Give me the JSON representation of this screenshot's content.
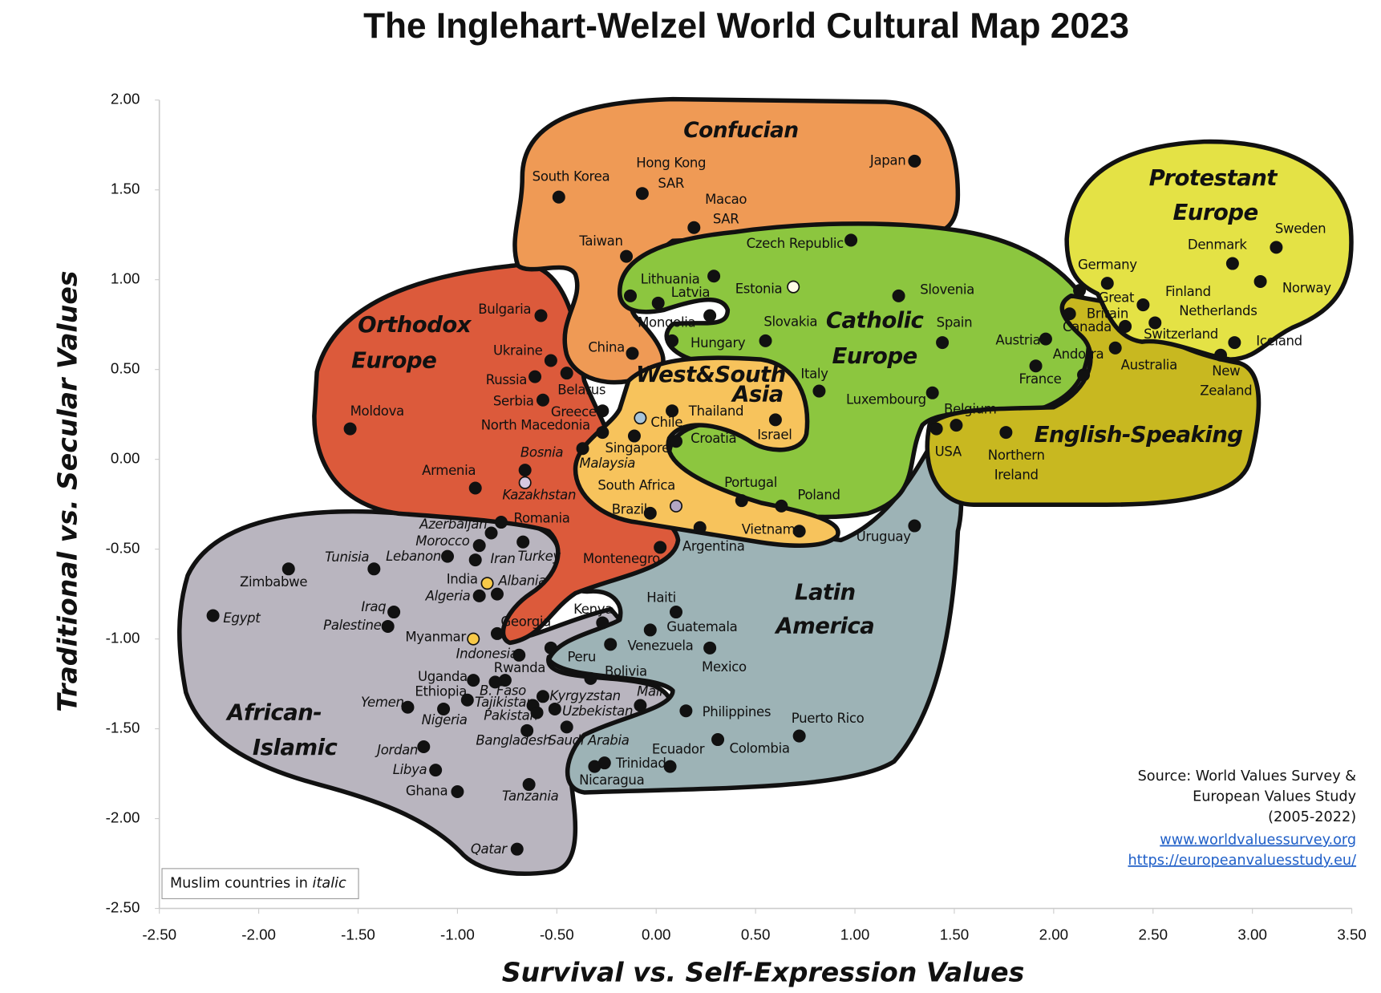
{
  "chart_data": {
    "type": "scatter",
    "title": "The Inglehart-Welzel World Cultural Map 2023",
    "x_label": "Survival vs. Self-Expression Values",
    "y_label": "Traditional vs. Secular Values",
    "xlim": [
      -2.5,
      3.5
    ],
    "ylim": [
      -2.5,
      2.0
    ],
    "xticks": [
      {
        "value": -2.5,
        "label": "-2.50"
      },
      {
        "value": -2.0,
        "label": "-2.00"
      },
      {
        "value": -1.5,
        "label": "-1.50"
      },
      {
        "value": -1.0,
        "label": "-1.00"
      },
      {
        "value": -0.5,
        "label": "-0.50"
      },
      {
        "value": 0,
        "label": "0.00"
      },
      {
        "value": 0.5,
        "label": "0.50"
      },
      {
        "value": 1.0,
        "label": "1.00"
      },
      {
        "value": 1.5,
        "label": "1.50"
      },
      {
        "value": 2.0,
        "label": "2.00"
      },
      {
        "value": 2.5,
        "label": "2.50"
      },
      {
        "value": 3.0,
        "label": "3.00"
      },
      {
        "value": 3.5,
        "label": "3.50"
      }
    ],
    "yticks": [
      {
        "value": 2.0,
        "label": "2.00"
      },
      {
        "value": 1.5,
        "label": "1.50"
      },
      {
        "value": 1.0,
        "label": "1.00"
      },
      {
        "value": 0.5,
        "label": "0.50"
      },
      {
        "value": 0,
        "label": "0.00"
      },
      {
        "value": -0.5,
        "label": "-0.50"
      },
      {
        "value": -1.0,
        "label": "-1.00"
      },
      {
        "value": -1.5,
        "label": "-1.50"
      },
      {
        "value": -2.0,
        "label": "-2.00"
      },
      {
        "value": -2.5,
        "label": "-2.50"
      }
    ],
    "color": "#111111",
    "regions": [
      {
        "label": [
          "Confucian"
        ]
      },
      {
        "label": [
          "Orthodox",
          "Europe"
        ]
      },
      {
        "label": [
          "Catholic",
          "Europe"
        ]
      },
      {
        "label": [
          "Protestant",
          "Europe"
        ]
      },
      {
        "label": [
          "West&South",
          "Asia"
        ]
      },
      {
        "label": [
          "Latin",
          "America"
        ]
      },
      {
        "label": [
          "African-",
          "Islamic"
        ]
      },
      {
        "label": [
          "English-Speaking"
        ]
      }
    ],
    "points": [
      {
        "name": "South Korea",
        "x": -0.49,
        "y": 1.46
      },
      {
        "name": [
          "Hong Kong",
          "SAR"
        ],
        "x": -0.07,
        "y": 1.48
      },
      {
        "name": [
          "Macao",
          "SAR"
        ],
        "x": 0.19,
        "y": 1.29
      },
      {
        "name": "Taiwan",
        "x": -0.15,
        "y": 1.13
      },
      {
        "name": "Japan",
        "x": 1.3,
        "y": 1.66
      },
      {
        "name": "Czech Republic",
        "x": 0.98,
        "y": 1.22
      },
      {
        "name": null,
        "x": 0.29,
        "y": 1.02
      },
      {
        "name": "Lithuania",
        "x": -0.13,
        "y": 0.91
      },
      {
        "name": "Latvia",
        "x": 0.01,
        "y": 0.87
      },
      {
        "name": "Estonia",
        "x": 0.69,
        "y": 0.96,
        "color": "#fffbe6"
      },
      {
        "name": "Slovenia",
        "x": 1.22,
        "y": 0.91
      },
      {
        "name": "Mongolia",
        "x": 0.27,
        "y": 0.8
      },
      {
        "name": "Slovakia",
        "x": 0.55,
        "y": 0.66
      },
      {
        "name": "Hungary",
        "x": 0.08,
        "y": 0.66
      },
      {
        "name": "Spain",
        "x": 1.44,
        "y": 0.65
      },
      {
        "name": "Bulgaria",
        "x": -0.58,
        "y": 0.8
      },
      {
        "name": "China",
        "x": -0.12,
        "y": 0.59
      },
      {
        "name": "Ukraine",
        "x": -0.53,
        "y": 0.55
      },
      {
        "name": "Russia",
        "x": -0.61,
        "y": 0.46
      },
      {
        "name": "Belarus",
        "x": -0.45,
        "y": 0.48
      },
      {
        "name": "Serbia",
        "x": -0.57,
        "y": 0.33
      },
      {
        "name": "Greece",
        "x": -0.27,
        "y": 0.27
      },
      {
        "name": "North Macedonia",
        "x": -0.27,
        "y": 0.15
      },
      {
        "name": "Moldova",
        "x": -1.54,
        "y": 0.17
      },
      {
        "name": "Italy",
        "x": 0.82,
        "y": 0.38
      },
      {
        "name": "Thailand",
        "x": 0.08,
        "y": 0.27
      },
      {
        "name": "Chile",
        "x": -0.08,
        "y": 0.23,
        "color": "#a8c4d8"
      },
      {
        "name": "Israel",
        "x": 0.6,
        "y": 0.22
      },
      {
        "name": "Croatia",
        "x": 0.1,
        "y": 0.1
      },
      {
        "name": "Singapore",
        "x": -0.11,
        "y": 0.13
      },
      {
        "name": "Malaysia",
        "x": -0.37,
        "y": 0.06,
        "italic": true
      },
      {
        "name": "Luxembourg",
        "x": 1.39,
        "y": 0.37
      },
      {
        "name": "Belgium",
        "x": 1.51,
        "y": 0.19
      },
      {
        "name": "USA",
        "x": 1.41,
        "y": 0.17
      },
      {
        "name": [
          "Northern",
          "Ireland"
        ],
        "x": 1.76,
        "y": 0.15
      },
      {
        "name": "Bosnia",
        "x": -0.66,
        "y": -0.06,
        "italic": true
      },
      {
        "name": "Kazakhstan",
        "x": -0.66,
        "y": -0.13,
        "italic": true,
        "color": "#d6c8e0"
      },
      {
        "name": "Armenia",
        "x": -0.91,
        "y": -0.16
      },
      {
        "name": "South Africa",
        "x": 0.1,
        "y": -0.26,
        "color": "#b3a6c4"
      },
      {
        "name": "Portugal",
        "x": 0.43,
        "y": -0.23
      },
      {
        "name": "Poland",
        "x": 0.63,
        "y": -0.26
      },
      {
        "name": "Brazil",
        "x": -0.03,
        "y": -0.3
      },
      {
        "name": "Romania",
        "x": -0.78,
        "y": -0.35
      },
      {
        "name": "Azerbaijan",
        "x": -0.83,
        "y": -0.41,
        "italic": true
      },
      {
        "name": "Argentina",
        "x": 0.22,
        "y": -0.38
      },
      {
        "name": "Vietnam",
        "x": 0.72,
        "y": -0.4
      },
      {
        "name": "Uruguay",
        "x": 1.3,
        "y": -0.37
      },
      {
        "name": "Morocco",
        "x": -0.89,
        "y": -0.48,
        "italic": true
      },
      {
        "name": "Turkey",
        "x": -0.67,
        "y": -0.46,
        "italic": true
      },
      {
        "name": "Lebanon",
        "x": -1.05,
        "y": -0.54,
        "italic": true
      },
      {
        "name": "Iran",
        "x": -0.91,
        "y": -0.56,
        "italic": true
      },
      {
        "name": "Montenegro",
        "x": 0.02,
        "y": -0.49
      },
      {
        "name": "Tunisia",
        "x": -1.42,
        "y": -0.61,
        "italic": true
      },
      {
        "name": "Zimbabwe",
        "x": -1.85,
        "y": -0.61
      },
      {
        "name": "India",
        "x": -0.85,
        "y": -0.69,
        "color": "#f7c948"
      },
      {
        "name": "Albania",
        "x": -0.8,
        "y": -0.75,
        "italic": true
      },
      {
        "name": "Algeria",
        "x": -0.89,
        "y": -0.76,
        "italic": true
      },
      {
        "name": "Egypt",
        "x": -2.23,
        "y": -0.87,
        "italic": true
      },
      {
        "name": "Iraq",
        "x": -1.32,
        "y": -0.85,
        "italic": true
      },
      {
        "name": "Palestine",
        "x": -1.35,
        "y": -0.93,
        "italic": true
      },
      {
        "name": "Kenya",
        "x": -0.27,
        "y": -0.91
      },
      {
        "name": "Haiti",
        "x": 0.1,
        "y": -0.85
      },
      {
        "name": "Georgia",
        "x": -0.8,
        "y": -0.97
      },
      {
        "name": "Myanmar",
        "x": -0.92,
        "y": -1.0,
        "color": "#f7c948"
      },
      {
        "name": "Guatemala",
        "x": -0.03,
        "y": -0.95
      },
      {
        "name": "Venezuela",
        "x": -0.23,
        "y": -1.03
      },
      {
        "name": "Mexico",
        "x": 0.27,
        "y": -1.05
      },
      {
        "name": "Indonesia",
        "x": -0.69,
        "y": -1.09,
        "italic": true
      },
      {
        "name": "Peru",
        "x": -0.53,
        "y": -1.05
      },
      {
        "name": "Bolivia",
        "x": -0.33,
        "y": -1.22
      },
      {
        "name": "Uganda",
        "x": -0.92,
        "y": -1.23
      },
      {
        "name": "Rwanda",
        "x": -0.76,
        "y": -1.23
      },
      {
        "name": "B. Faso",
        "x": -0.81,
        "y": -1.24,
        "italic": true
      },
      {
        "name": "Ethiopia",
        "x": -0.95,
        "y": -1.34
      },
      {
        "name": "Kyrgyzstan",
        "x": -0.57,
        "y": -1.32,
        "italic": true
      },
      {
        "name": "Tajikistan",
        "x": -0.62,
        "y": -1.37,
        "italic": true
      },
      {
        "name": "Mali",
        "x": -0.08,
        "y": -1.37,
        "italic": true
      },
      {
        "name": "Yemen",
        "x": -1.25,
        "y": -1.38,
        "italic": true
      },
      {
        "name": "Nigeria",
        "x": -1.07,
        "y": -1.39,
        "italic": true
      },
      {
        "name": "Uzbekistan",
        "x": -0.51,
        "y": -1.39,
        "italic": true
      },
      {
        "name": "Pakistan",
        "x": -0.6,
        "y": -1.41,
        "italic": true
      },
      {
        "name": "Philippines",
        "x": 0.15,
        "y": -1.4
      },
      {
        "name": "Saudi Arabia",
        "x": -0.45,
        "y": -1.49,
        "italic": true
      },
      {
        "name": "Bangladesh",
        "x": -0.65,
        "y": -1.51,
        "italic": true
      },
      {
        "name": "Puerto Rico",
        "x": 0.72,
        "y": -1.54
      },
      {
        "name": "Colombia",
        "x": 0.31,
        "y": -1.56
      },
      {
        "name": "Jordan",
        "x": -1.17,
        "y": -1.6,
        "italic": true
      },
      {
        "name": "Ecuador",
        "x": 0.07,
        "y": -1.71
      },
      {
        "name": "Trinidad",
        "x": -0.26,
        "y": -1.69
      },
      {
        "name": "Nicaragua",
        "x": -0.31,
        "y": -1.71
      },
      {
        "name": "Libya",
        "x": -1.11,
        "y": -1.73,
        "italic": true
      },
      {
        "name": "Ghana",
        "x": -1.0,
        "y": -1.85
      },
      {
        "name": "Tanzania",
        "x": -0.64,
        "y": -1.81,
        "italic": true
      },
      {
        "name": "Qatar",
        "x": -0.7,
        "y": -2.17,
        "italic": true
      },
      {
        "name": "Sweden",
        "x": 3.12,
        "y": 1.18
      },
      {
        "name": "Denmark",
        "x": 2.9,
        "y": 1.09
      },
      {
        "name": "Norway",
        "x": 3.04,
        "y": 0.99
      },
      {
        "name": "Germany",
        "x": 2.13,
        "y": 0.94
      },
      {
        "name": [
          "Great",
          "Britain"
        ],
        "x": 2.27,
        "y": 0.98
      },
      {
        "name": "Finland",
        "x": 2.45,
        "y": 0.86
      },
      {
        "name": "Canada",
        "x": 2.08,
        "y": 0.81
      },
      {
        "name": "Netherlands",
        "x": 2.51,
        "y": 0.76
      },
      {
        "name": "Switzerland",
        "x": 2.36,
        "y": 0.74
      },
      {
        "name": "Iceland",
        "x": 2.91,
        "y": 0.65
      },
      {
        "name": "Austria",
        "x": 1.96,
        "y": 0.67
      },
      {
        "name": "Australia",
        "x": 2.31,
        "y": 0.62
      },
      {
        "name": [
          "New",
          "Zealand"
        ],
        "x": 2.84,
        "y": 0.58
      },
      {
        "name": "France",
        "x": 1.91,
        "y": 0.52
      },
      {
        "name": "Andorra",
        "x": 2.15,
        "y": 0.47
      }
    ],
    "note": "Muslim countries in ",
    "note_italic": "italic",
    "source": [
      "Source: World Values Survey &",
      "European Values Study",
      "(2005-2022)"
    ],
    "links": [
      "www.worldvaluessurvey.org",
      "https://europeanvaluesstudy.eu/"
    ]
  }
}
